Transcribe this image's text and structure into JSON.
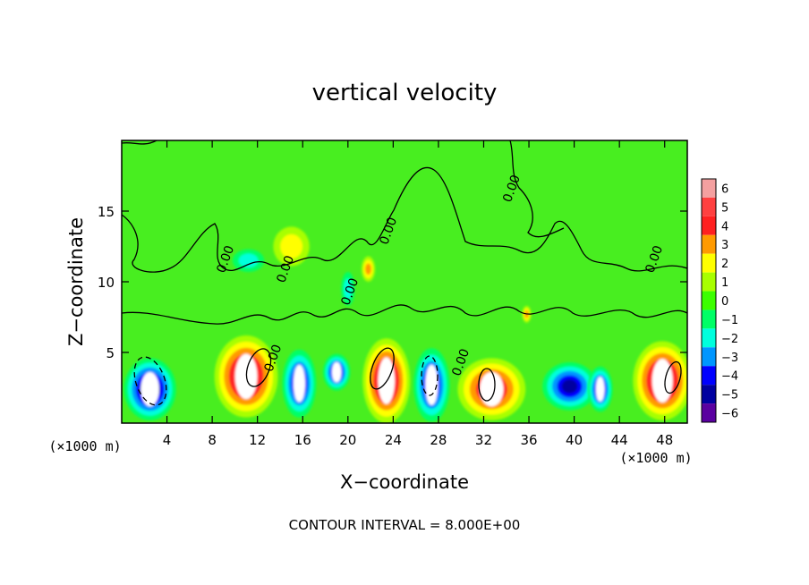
{
  "chart_data": {
    "type": "heatmap",
    "title": "vertical velocity",
    "xlabel": "X−coordinate",
    "ylabel": "Z−coordinate",
    "x_unit_label": "(×1000 m)",
    "y_unit_label": "(×1000 m)",
    "xlim": [
      0,
      50
    ],
    "ylim": [
      0,
      20
    ],
    "x_ticks": [
      4,
      8,
      12,
      16,
      20,
      24,
      28,
      32,
      36,
      40,
      44,
      48
    ],
    "y_ticks": [
      5,
      10,
      15
    ],
    "colorbar": {
      "min": -6,
      "max": 6,
      "tick_labels": [
        "6",
        "5",
        "4",
        "3",
        "2",
        "1",
        "0",
        "−1",
        "−2",
        "−3",
        "−4",
        "−5",
        "−6"
      ],
      "colors": [
        "#f4a0a0",
        "#ff4040",
        "#ff2020",
        "#ff9a00",
        "#ffff00",
        "#a8ff00",
        "#3cff00",
        "#00ff66",
        "#00ffdd",
        "#0096ff",
        "#0000ff",
        "#0000a0",
        "#5a00a0"
      ]
    },
    "background_color": "#48ee20",
    "contour_label": "0.00",
    "contour_label_positions": [
      [
        9.5,
        11.5
      ],
      [
        14.8,
        10.8
      ],
      [
        20.5,
        9.2
      ],
      [
        23.9,
        13.5
      ],
      [
        30.3,
        4.2
      ],
      [
        34.8,
        16.5
      ],
      [
        47.4,
        11.5
      ],
      [
        13.7,
        4.5
      ]
    ],
    "cells": [
      {
        "x": 2.5,
        "z": 2.4,
        "value": -5.5,
        "rx": 2.3,
        "rz": 2.2
      },
      {
        "x": 11.0,
        "z": 3.3,
        "value": 5.6,
        "rx": 2.8,
        "rz": 2.9
      },
      {
        "x": 15.7,
        "z": 2.8,
        "value": -5.3,
        "rx": 1.5,
        "rz": 2.4
      },
      {
        "x": 19.0,
        "z": 3.6,
        "value": -5.0,
        "rx": 1.2,
        "rz": 1.3
      },
      {
        "x": 23.4,
        "z": 3.0,
        "value": 5.8,
        "rx": 2.1,
        "rz": 3.0
      },
      {
        "x": 27.4,
        "z": 2.7,
        "value": -5.4,
        "rx": 1.6,
        "rz": 2.6
      },
      {
        "x": 32.7,
        "z": 2.4,
        "value": 5.3,
        "rx": 3.0,
        "rz": 2.2
      },
      {
        "x": 39.6,
        "z": 2.6,
        "value": -4.6,
        "rx": 2.4,
        "rz": 1.7
      },
      {
        "x": 42.3,
        "z": 2.4,
        "value": -5.1,
        "rx": 1.1,
        "rz": 1.6
      },
      {
        "x": 47.8,
        "z": 3.0,
        "value": 5.6,
        "rx": 2.6,
        "rz": 2.8
      },
      {
        "x": 21.8,
        "z": 10.9,
        "value": 3.2,
        "rx": 0.6,
        "rz": 0.9
      },
      {
        "x": 35.8,
        "z": 7.7,
        "value": 3.0,
        "rx": 0.4,
        "rz": 0.6
      },
      {
        "x": 20.0,
        "z": 9.5,
        "value": -2.0,
        "rx": 0.6,
        "rz": 1.2
      },
      {
        "x": 15.0,
        "z": 12.5,
        "value": 1.5,
        "rx": 1.6,
        "rz": 1.4
      },
      {
        "x": 11.2,
        "z": 11.5,
        "value": -1.5,
        "rx": 1.4,
        "rz": 0.8
      }
    ]
  },
  "footer": {
    "contour_interval": "CONTOUR INTERVAL = 8.000E+00"
  }
}
